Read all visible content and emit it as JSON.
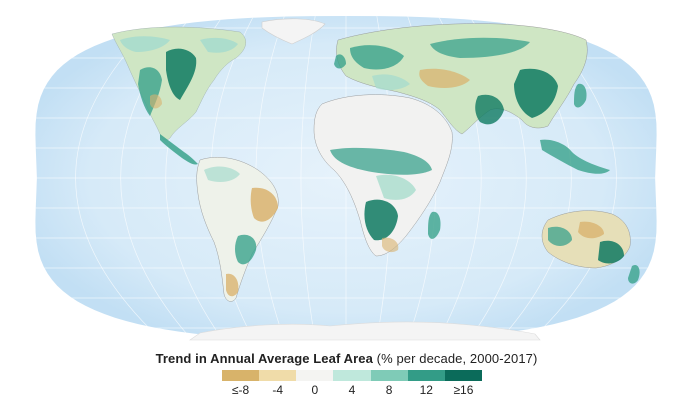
{
  "map": {
    "projection": "robinson-like",
    "ocean_color": "#d9ecf8",
    "ocean_edge_color": "#c4e1f5",
    "graticule_color": "#ffffff",
    "land_base_color": "#d8d4c4",
    "ice_color": "#f4f4f4",
    "desert_color": "#f2f2f1",
    "green_dark": "#0b6f5d",
    "green_mid": "#3aa28c",
    "green_light": "#a7dccd",
    "brown": "#d9b36f"
  },
  "legend": {
    "title_bold": "Trend in Annual Average Leaf Area",
    "title_rest": "(% per decade, 2000-2017)",
    "colors": [
      "#d8b36a",
      "#f0dca9",
      "#f4f4f2",
      "#bfe8dc",
      "#7fcbb7",
      "#339c87",
      "#0b6b5a"
    ],
    "tick_labels": [
      "≤-8",
      "-4",
      "0",
      "4",
      "8",
      "12",
      "≥16"
    ]
  }
}
